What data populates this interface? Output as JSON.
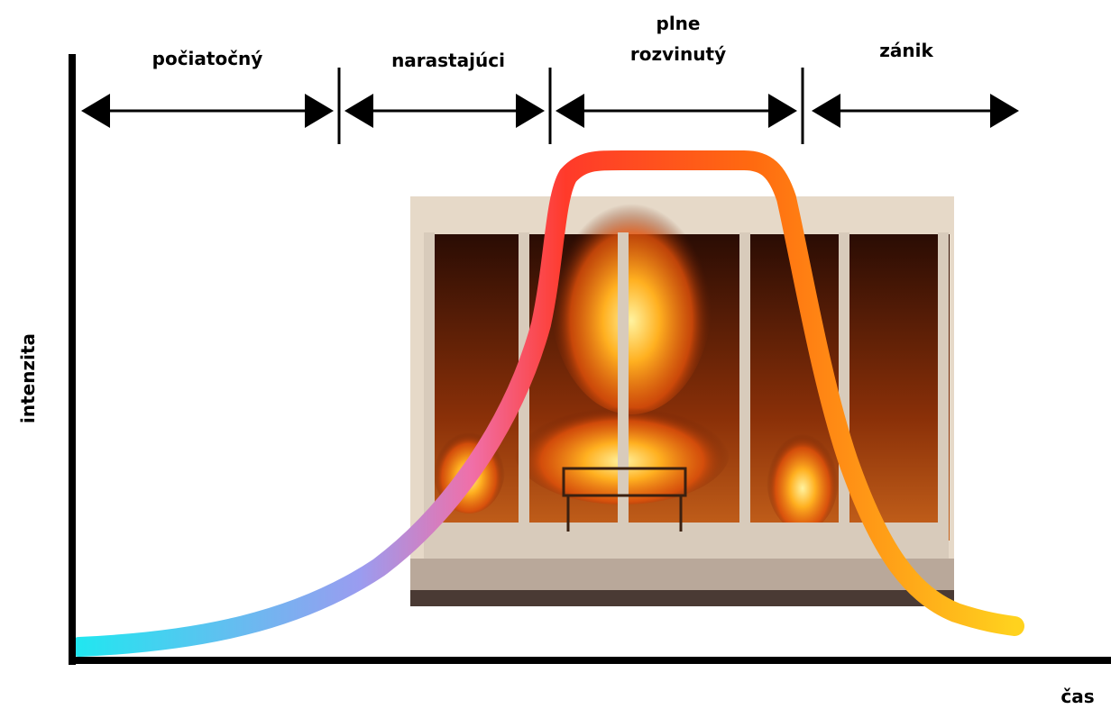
{
  "stages": [
    {
      "lines": [
        "počiatočný"
      ]
    },
    {
      "lines": [
        "narastajúci"
      ]
    },
    {
      "lines": [
        "plne",
        "rozvinutý"
      ]
    },
    {
      "lines": [
        "zánik"
      ]
    }
  ],
  "axes": {
    "y_label": "intenzita",
    "x_label": "čas"
  }
}
